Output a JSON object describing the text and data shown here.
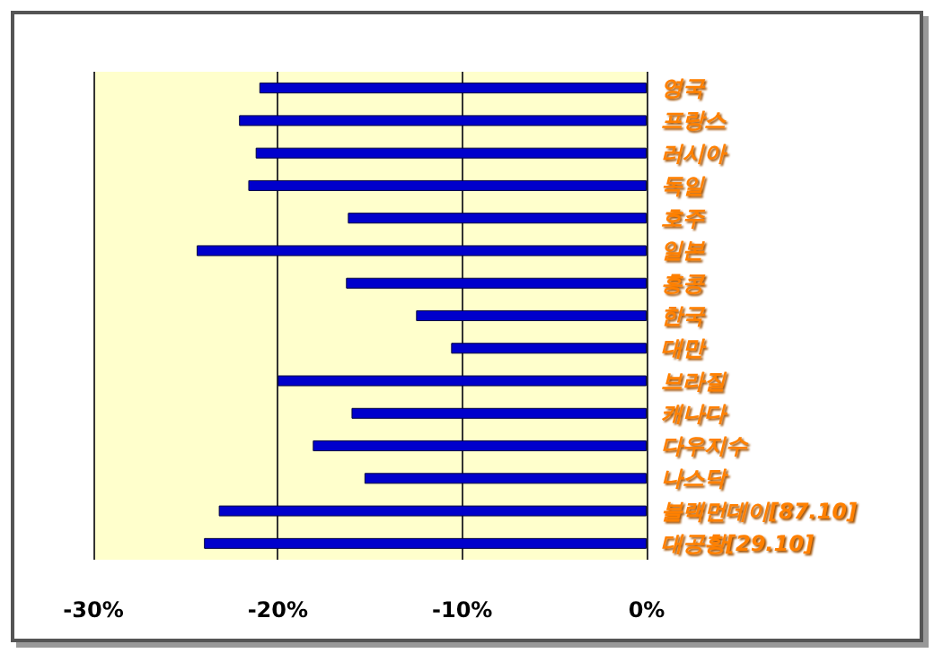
{
  "chart_data": {
    "type": "bar",
    "orientation": "horizontal",
    "categories": [
      "영국",
      "프랑스",
      "러시아",
      "독일",
      "호주",
      "일본",
      "홍콩",
      "한국",
      "대만",
      "브라질",
      "캐나다",
      "다우지수",
      "나스닥",
      "블랙먼데이[87.10]",
      "대공황[29.10]"
    ],
    "values": [
      -21.0,
      -22.1,
      -21.2,
      -21.6,
      -16.2,
      -24.4,
      -16.3,
      -12.5,
      -10.6,
      -20.0,
      -16.0,
      -18.1,
      -15.3,
      -23.2,
      -24.0
    ],
    "color": "#0000cc",
    "xlim": [
      -30,
      0
    ],
    "xticks": [
      {
        "value": -30,
        "label": "-30%"
      },
      {
        "value": -20,
        "label": "-20%"
      },
      {
        "value": -10,
        "label": "-10%"
      },
      {
        "value": 0,
        "label": "0%"
      }
    ],
    "grid": "x"
  }
}
